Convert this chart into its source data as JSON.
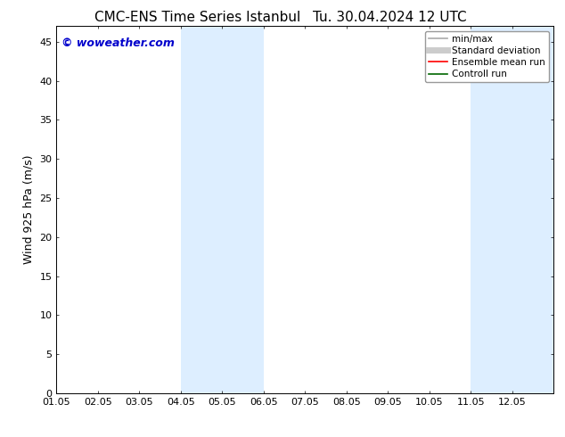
{
  "title": "CMC-ENS Time Series Istanbul",
  "title2": "Tu. 30.04.2024 12 UTC",
  "ylabel": "Wind 925 hPa (m/s)",
  "watermark": "© woweather.com",
  "watermark_color": "#0000cc",
  "xlim_min": 0,
  "xlim_max": 12,
  "ylim_min": 0,
  "ylim_max": 47,
  "yticks": [
    0,
    5,
    10,
    15,
    20,
    25,
    30,
    35,
    40,
    45
  ],
  "xtick_labels": [
    "01.05",
    "02.05",
    "03.05",
    "04.05",
    "05.05",
    "06.05",
    "07.05",
    "08.05",
    "09.05",
    "10.05",
    "11.05",
    "12.05"
  ],
  "xtick_positions": [
    0,
    1,
    2,
    3,
    4,
    5,
    6,
    7,
    8,
    9,
    10,
    11
  ],
  "shaded_bands": [
    {
      "xmin": 3,
      "xmax": 5
    },
    {
      "xmin": 10,
      "xmax": 12
    }
  ],
  "shade_color": "#ddeeff",
  "bg_color": "#ffffff",
  "plot_bg_color": "#ffffff",
  "legend_entries": [
    {
      "label": "min/max",
      "color": "#aaaaaa",
      "lw": 1.2
    },
    {
      "label": "Standard deviation",
      "color": "#cccccc",
      "lw": 5
    },
    {
      "label": "Ensemble mean run",
      "color": "#ff0000",
      "lw": 1.2
    },
    {
      "label": "Controll run",
      "color": "#006600",
      "lw": 1.2
    }
  ],
  "title_fontsize": 11,
  "axis_fontsize": 9,
  "tick_fontsize": 8,
  "watermark_fontsize": 9,
  "legend_fontsize": 7.5
}
